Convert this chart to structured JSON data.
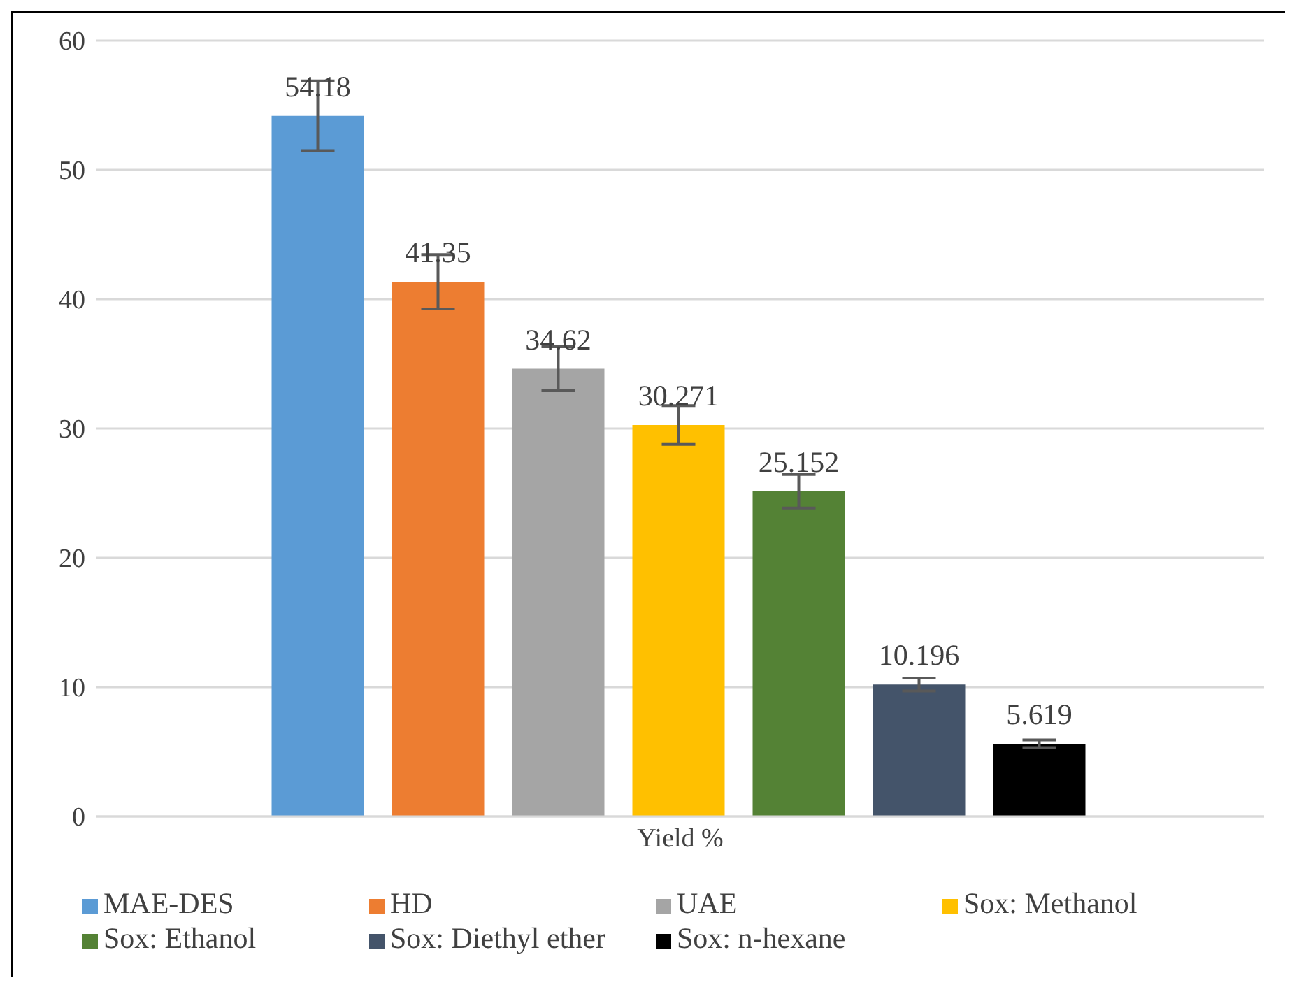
{
  "chart_data": {
    "type": "bar",
    "categories": [
      "Yield %"
    ],
    "series": [
      {
        "name": "MAE-DES",
        "color": "#5b9bd5",
        "values": [
          54.18
        ],
        "errors": [
          2.7
        ]
      },
      {
        "name": "HD",
        "color": "#ed7d31",
        "values": [
          41.35
        ],
        "errors": [
          2.1
        ]
      },
      {
        "name": "UAE",
        "color": "#a5a5a5",
        "values": [
          34.62
        ],
        "errors": [
          1.7
        ]
      },
      {
        "name": "Sox: Methanol",
        "color": "#ffc000",
        "values": [
          30.271
        ],
        "errors": [
          1.5
        ]
      },
      {
        "name": "Sox: Ethanol",
        "color": "#548235",
        "values": [
          25.152
        ],
        "errors": [
          1.3
        ]
      },
      {
        "name": "Sox: Diethyl ether",
        "color": "#44546a",
        "values": [
          10.196
        ],
        "errors": [
          0.5
        ]
      },
      {
        "name": "Sox: n-hexane",
        "color": "#000000",
        "values": [
          5.619
        ],
        "errors": [
          0.3
        ]
      }
    ],
    "ylim": [
      0,
      60
    ],
    "yticks": [
      0,
      10,
      20,
      30,
      40,
      50,
      60
    ],
    "grid": "y",
    "legend": "bottom",
    "data_labels": true
  }
}
